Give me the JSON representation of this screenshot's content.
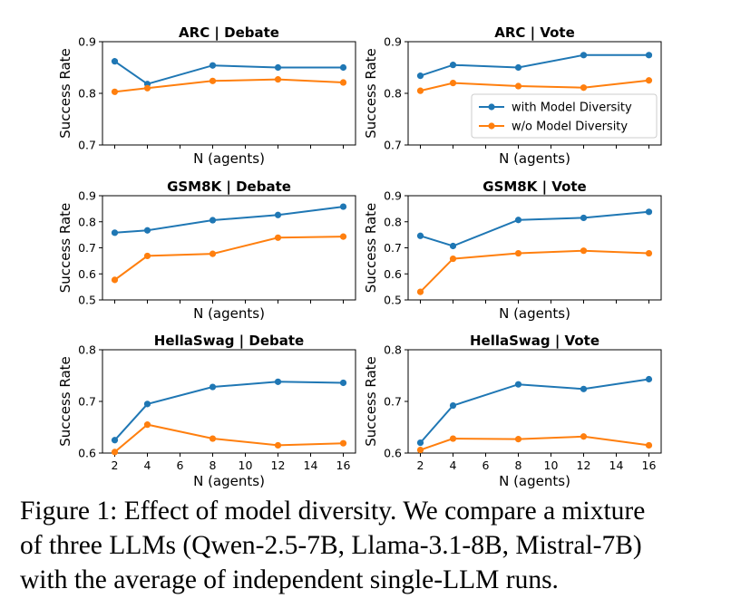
{
  "caption": {
    "lines": [
      "Figure 1: Effect of model diversity. We compare a mixture",
      "of three LLMs (Qwen-2.5-7B, Llama-3.1-8B, Mistral-7B)",
      "with the average of independent single-LLM runs."
    ]
  },
  "colors": {
    "with": "#1f77b4",
    "without": "#ff7f0e",
    "axis": "#000000"
  },
  "chart_data": [
    {
      "type": "line",
      "title": "ARC | Debate",
      "xlabel": "N (agents)",
      "ylabel": "Success Rate",
      "x": [
        2,
        4,
        8,
        12,
        16
      ],
      "ylim": [
        0.7,
        0.9
      ],
      "yticks": [
        "0.7",
        "0.8",
        "0.9"
      ],
      "xticks": [
        "2",
        "4",
        "6",
        "8",
        "10",
        "12",
        "14",
        "16"
      ],
      "show_xticklabels": false,
      "series": [
        {
          "name": "with Model Diversity",
          "values": [
            0.862,
            0.818,
            0.854,
            0.85,
            0.85
          ]
        },
        {
          "name": "w/o Model Diversity",
          "values": [
            0.803,
            0.81,
            0.824,
            0.827,
            0.821
          ]
        }
      ]
    },
    {
      "type": "line",
      "title": "ARC | Vote",
      "xlabel": "N (agents)",
      "ylabel": "Success Rate",
      "x": [
        2,
        4,
        8,
        12,
        16
      ],
      "ylim": [
        0.7,
        0.9
      ],
      "yticks": [
        "0.7",
        "0.8",
        "0.9"
      ],
      "xticks": [
        "2",
        "4",
        "6",
        "8",
        "10",
        "12",
        "14",
        "16"
      ],
      "show_xticklabels": false,
      "legend": "center-right",
      "series": [
        {
          "name": "with Model Diversity",
          "values": [
            0.834,
            0.855,
            0.85,
            0.874,
            0.874
          ]
        },
        {
          "name": "w/o Model Diversity",
          "values": [
            0.805,
            0.82,
            0.814,
            0.811,
            0.825
          ]
        }
      ]
    },
    {
      "type": "line",
      "title": "GSM8K | Debate",
      "xlabel": "N (agents)",
      "ylabel": "Success Rate",
      "x": [
        2,
        4,
        8,
        12,
        16
      ],
      "ylim": [
        0.5,
        0.9
      ],
      "yticks": [
        "0.5",
        "0.6",
        "0.7",
        "0.8",
        "0.9"
      ],
      "xticks": [
        "2",
        "4",
        "6",
        "8",
        "10",
        "12",
        "14",
        "16"
      ],
      "show_xticklabels": false,
      "series": [
        {
          "name": "with Model Diversity",
          "values": [
            0.758,
            0.767,
            0.806,
            0.826,
            0.858
          ]
        },
        {
          "name": "w/o Model Diversity",
          "values": [
            0.577,
            0.669,
            0.677,
            0.739,
            0.743
          ]
        }
      ]
    },
    {
      "type": "line",
      "title": "GSM8K | Vote",
      "xlabel": "N (agents)",
      "ylabel": "Success Rate",
      "x": [
        2,
        4,
        8,
        12,
        16
      ],
      "ylim": [
        0.5,
        0.9
      ],
      "yticks": [
        "0.5",
        "0.6",
        "0.7",
        "0.8",
        "0.9"
      ],
      "xticks": [
        "2",
        "4",
        "6",
        "8",
        "10",
        "12",
        "14",
        "16"
      ],
      "show_xticklabels": false,
      "series": [
        {
          "name": "with Model Diversity",
          "values": [
            0.746,
            0.707,
            0.807,
            0.815,
            0.838
          ]
        },
        {
          "name": "w/o Model Diversity",
          "values": [
            0.531,
            0.658,
            0.679,
            0.689,
            0.679
          ]
        }
      ]
    },
    {
      "type": "line",
      "title": "HellaSwag | Debate",
      "xlabel": "N (agents)",
      "ylabel": "Success Rate",
      "x": [
        2,
        4,
        8,
        12,
        16
      ],
      "ylim": [
        0.6,
        0.8
      ],
      "yticks": [
        "0.6",
        "0.7",
        "0.8"
      ],
      "xticks": [
        "2",
        "4",
        "6",
        "8",
        "10",
        "12",
        "14",
        "16"
      ],
      "show_xticklabels": true,
      "series": [
        {
          "name": "with Model Diversity",
          "values": [
            0.625,
            0.695,
            0.728,
            0.738,
            0.736
          ]
        },
        {
          "name": "w/o Model Diversity",
          "values": [
            0.602,
            0.655,
            0.628,
            0.615,
            0.619
          ]
        }
      ]
    },
    {
      "type": "line",
      "title": "HellaSwag | Vote",
      "xlabel": "N (agents)",
      "ylabel": "Success Rate",
      "x": [
        2,
        4,
        8,
        12,
        16
      ],
      "ylim": [
        0.6,
        0.8
      ],
      "yticks": [
        "0.6",
        "0.7",
        "0.8"
      ],
      "xticks": [
        "2",
        "4",
        "6",
        "8",
        "10",
        "12",
        "14",
        "16"
      ],
      "show_xticklabels": true,
      "series": [
        {
          "name": "with Model Diversity",
          "values": [
            0.62,
            0.692,
            0.733,
            0.724,
            0.743
          ]
        },
        {
          "name": "w/o Model Diversity",
          "values": [
            0.606,
            0.628,
            0.627,
            0.632,
            0.615
          ]
        }
      ]
    }
  ]
}
